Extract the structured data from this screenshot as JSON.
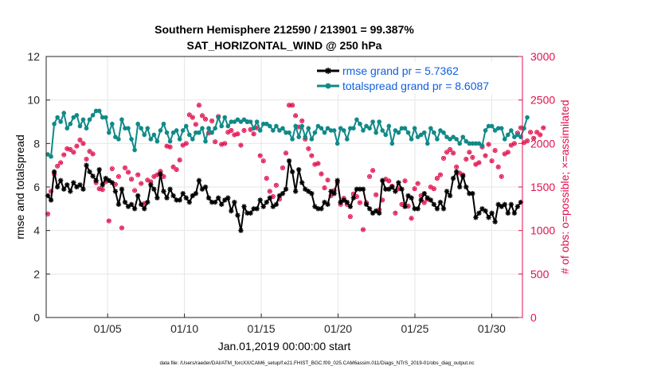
{
  "chart_data": {
    "type": "line",
    "title_line1": "Southern Hemisphere 212590 / 213901 = 99.387%",
    "title_line2": "SAT_HORIZONTAL_WIND @ 250 hPa",
    "xlabel": "Jan.01,2019 00:00:00 start",
    "ylabel_left": "rmse and totalspread",
    "ylabel_right": "# of obs: o=possible; ×=assimilated",
    "footnote": "data file: /Users/raeder/DAI/ATM_forcXX/CAM6_setup/f.e21.FHIST_BGC.f09_025.CAM6assim.011/Diags_NTrS_2019-01/obs_diag_output.nc",
    "xlim_days": [
      1,
      32
    ],
    "ylim_left": [
      0,
      12
    ],
    "ylim_right": [
      0,
      3000
    ],
    "yticks_left": [
      "0",
      "2",
      "4",
      "6",
      "8",
      "10",
      "12"
    ],
    "yticks_right": [
      "0",
      "500",
      "1000",
      "1500",
      "2000",
      "2500",
      "3000"
    ],
    "xticks": [
      {
        "day": 5,
        "label": "01/05"
      },
      {
        "day": 10,
        "label": "01/10"
      },
      {
        "day": 15,
        "label": "01/15"
      },
      {
        "day": 20,
        "label": "01/20"
      },
      {
        "day": 25,
        "label": "01/25"
      },
      {
        "day": 30,
        "label": "01/30"
      }
    ],
    "legend_placement": "top-right",
    "series": [
      {
        "name": "rmse grand pr = 5.7362",
        "color": "#000000",
        "marker": "asterisk",
        "axis": "left",
        "values": [
          5.6,
          5.4,
          6.7,
          6.0,
          6.3,
          5.9,
          6.1,
          5.8,
          6.2,
          6.0,
          6.1,
          5.9,
          7.0,
          6.7,
          6.5,
          6.3,
          6.8,
          6.1,
          6.4,
          6.3,
          6.2,
          5.8,
          5.2,
          5.9,
          5.3,
          5.1,
          5.2,
          5.0,
          5.6,
          5.2,
          5.0,
          5.3,
          6.1,
          5.9,
          5.5,
          6.6,
          5.8,
          5.5,
          5.9,
          5.6,
          5.4,
          5.4,
          5.7,
          5.5,
          5.3,
          5.6,
          5.7,
          6.3,
          5.9,
          6.0,
          5.5,
          5.3,
          5.3,
          5.5,
          5.2,
          5.4,
          5.5,
          4.9,
          5.3,
          4.7,
          4.0,
          5.1,
          4.8,
          4.8,
          5.0,
          5.0,
          5.4,
          5.1,
          5.3,
          5.5,
          5.1,
          5.2,
          5.6,
          5.7,
          5.9,
          7.2,
          6.7,
          5.8,
          6.8,
          6.2,
          5.9,
          5.8,
          5.7,
          5.1,
          5.0,
          5.0,
          5.3,
          5.2,
          5.8,
          5.7,
          6.3,
          5.3,
          5.4,
          5.3,
          5.1,
          5.5,
          5.9,
          5.9,
          5.9,
          5.2,
          5.0,
          4.8,
          4.9,
          4.8,
          6.3,
          5.9,
          5.9,
          6.0,
          5.8,
          6.2,
          5.9,
          5.1,
          5.6,
          5.5,
          5.0,
          5.0,
          5.4,
          5.7,
          5.5,
          5.4,
          5.2,
          5.0,
          5.3,
          5.0,
          5.8,
          5.6,
          6.4,
          6.7,
          6.0,
          6.5,
          6.0,
          5.7,
          5.7,
          4.6,
          4.8,
          5.0,
          4.9,
          4.6,
          4.8,
          4.4,
          5.2,
          5.1,
          5.2,
          4.8,
          5.2,
          4.8,
          5.1,
          5.3
        ]
      },
      {
        "name": "totalspread grand pr = 8.6087",
        "color": "#108A88",
        "marker": "circle",
        "axis": "left",
        "values": [
          7.5,
          7.4,
          8.9,
          9.2,
          9.0,
          9.4,
          8.7,
          8.9,
          9.2,
          9.3,
          8.8,
          9.1,
          8.7,
          9.1,
          9.3,
          9.5,
          9.5,
          9.2,
          9.2,
          8.5,
          8.9,
          8.3,
          8.2,
          9.1,
          8.7,
          8.7,
          8.2,
          7.7,
          8.9,
          8.7,
          8.4,
          8.7,
          8.2,
          8.4,
          8.1,
          8.6,
          8.9,
          8.5,
          8.1,
          8.5,
          8.6,
          8.2,
          8.6,
          8.8,
          8.4,
          8.2,
          8.5,
          8.5,
          8.7,
          8.1,
          8.7,
          8.5,
          8.7,
          9.2,
          8.8,
          9.2,
          8.8,
          9.0,
          9.0,
          9.1,
          9.0,
          9.1,
          9.0,
          9.0,
          8.7,
          9.0,
          8.6,
          8.9,
          8.9,
          8.8,
          8.6,
          8.8,
          8.6,
          8.7,
          8.5,
          8.5,
          8.2,
          8.8,
          8.3,
          8.8,
          8.3,
          8.7,
          8.2,
          8.5,
          8.8,
          8.7,
          8.5,
          8.7,
          8.6,
          8.6,
          8.0,
          8.7,
          8.6,
          8.2,
          8.7,
          8.7,
          9.1,
          8.9,
          8.6,
          8.8,
          8.7,
          9.0,
          8.5,
          9.0,
          8.6,
          8.4,
          8.8,
          8.0,
          8.6,
          8.5,
          8.7,
          8.7,
          8.5,
          8.2,
          8.7,
          8.3,
          8.4,
          8.5,
          8.0,
          8.7,
          8.5,
          8.2,
          8.6,
          8.5,
          8.3,
          8.2,
          8.3,
          8.2,
          8.0,
          8.3,
          8.1,
          8.0,
          8.0,
          8.0,
          8.0,
          7.9,
          8.6,
          8.8,
          8.8,
          8.6,
          8.7,
          8.7,
          8.2,
          8.4,
          8.6,
          8.3,
          8.4,
          8.3,
          8.7,
          9.2
        ]
      },
      {
        "name": "# of obs possible",
        "color": "#E0104E",
        "marker": "o",
        "axis": "right",
        "values": [
          1190,
          1450,
          1650,
          1740,
          1780,
          1870,
          1940,
          1930,
          1900,
          1970,
          2040,
          2000,
          1820,
          1910,
          1880,
          1550,
          1480,
          1470,
          1560,
          1110,
          1710,
          1530,
          1620,
          1030,
          1720,
          1670,
          1590,
          1460,
          1640,
          1540,
          1310,
          1580,
          1560,
          1620,
          1640,
          1680,
          1620,
          1970,
          1960,
          1730,
          1700,
          1810,
          1980,
          2000,
          2330,
          2300,
          2220,
          2440,
          2320,
          2280,
          2120,
          2260,
          2020,
          2310,
          1990,
          2000,
          2130,
          2150,
          2100,
          2110,
          1980,
          2150,
          2250,
          2160,
          2110,
          2180,
          1860,
          1800,
          1600,
          1450,
          1390,
          1520,
          1360,
          1720,
          1890,
          2440,
          2440,
          2320,
          2190,
          2260,
          2050,
          1940,
          1860,
          1760,
          1770,
          1650,
          1490,
          1580,
          1400,
          1460,
          1550,
          1300,
          1370,
          1300,
          1160,
          1420,
          1390,
          1320,
          1010,
          1320,
          1620,
          1690,
          1410,
          1240,
          1350,
          1590,
          1570,
          1510,
          1200,
          1480,
          1300,
          1570,
          1280,
          1140,
          1480,
          1540,
          1400,
          1320,
          1360,
          1500,
          1480,
          1600,
          1640,
          1830,
          1900,
          1930,
          1890,
          1730,
          1660,
          1640,
          1820,
          1900,
          1840,
          1760,
          1780,
          1960,
          1860,
          1990,
          1800,
          1920,
          1730,
          1620,
          1880,
          1900,
          1980,
          2000,
          2120,
          2180,
          2010,
          2030,
          2130,
          2060,
          2130,
          2100,
          2180
        ]
      },
      {
        "name": "# of obs assimilated",
        "color": "#E0104E",
        "marker": "asterisk",
        "axis": "right",
        "values": [
          1190,
          1450,
          1650,
          1740,
          1780,
          1870,
          1940,
          1930,
          1900,
          1970,
          2040,
          2000,
          1820,
          1910,
          1880,
          1550,
          1480,
          1470,
          1560,
          1110,
          1710,
          1530,
          1620,
          1030,
          1720,
          1670,
          1590,
          1460,
          1640,
          1540,
          1310,
          1580,
          1560,
          1620,
          1640,
          1680,
          1620,
          1970,
          1960,
          1730,
          1700,
          1810,
          1980,
          2000,
          2330,
          2300,
          2220,
          2440,
          2320,
          2280,
          2120,
          2260,
          2020,
          2310,
          1990,
          2000,
          2130,
          2150,
          2100,
          2110,
          1980,
          2150,
          2250,
          2160,
          2110,
          2180,
          1860,
          1800,
          1600,
          1450,
          1390,
          1520,
          1360,
          1720,
          1890,
          2440,
          2440,
          2320,
          2190,
          2260,
          2050,
          1940,
          1860,
          1760,
          1770,
          1650,
          1490,
          1580,
          1400,
          1460,
          1550,
          1300,
          1370,
          1300,
          1160,
          1420,
          1390,
          1320,
          1010,
          1320,
          1620,
          1690,
          1410,
          1240,
          1350,
          1590,
          1570,
          1510,
          1200,
          1480,
          1300,
          1570,
          1280,
          1140,
          1480,
          1540,
          1400,
          1320,
          1360,
          1500,
          1480,
          1600,
          1640,
          1830,
          1900,
          1930,
          1890,
          1730,
          1660,
          1640,
          1820,
          1900,
          1840,
          1760,
          1780,
          1960,
          1860,
          1990,
          1800,
          1920,
          1730,
          1620,
          1880,
          1900,
          1980,
          2000,
          2120,
          2180,
          2010,
          2030,
          2130,
          2060,
          2130,
          2100,
          2180
        ]
      }
    ]
  }
}
